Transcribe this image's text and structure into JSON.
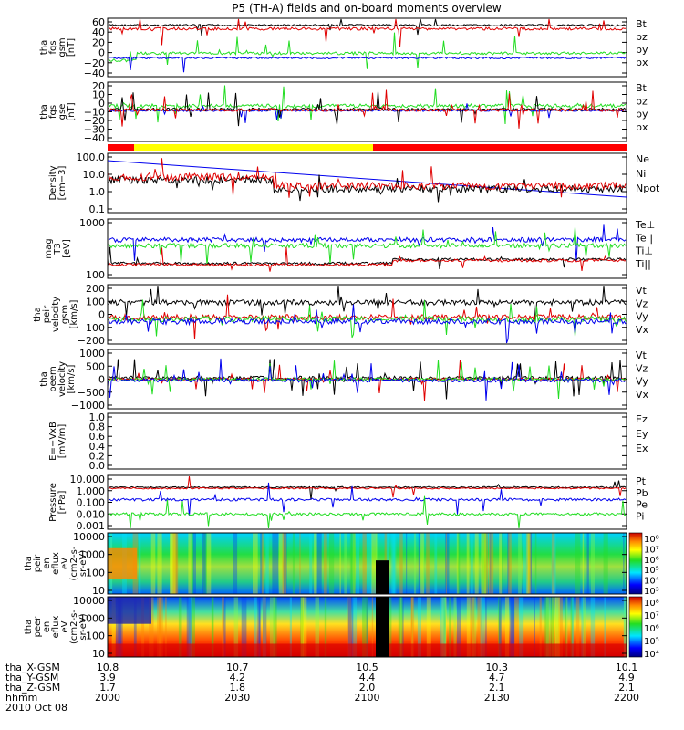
{
  "title": "P5 (TH-A) fields and on-board moments overview",
  "colors": {
    "black": "#000000",
    "red": "#e00000",
    "green": "#22dd22",
    "blue": "#0000ee",
    "yellow": "#ffff00"
  },
  "chart_data": [
    {
      "type": "line",
      "panel": "fgs_gsm",
      "ylabel": [
        "tha",
        "fgs",
        "gsm",
        "[nT]"
      ],
      "ylim": [
        -40,
        60
      ],
      "yticks": [
        "60",
        "40",
        "20",
        "0",
        "−20",
        "−40"
      ],
      "series": [
        {
          "name": "Bt",
          "color": "black"
        },
        {
          "name": "bz",
          "color": "red"
        },
        {
          "name": "by",
          "color": "green"
        },
        {
          "name": "bx",
          "color": "blue"
        }
      ]
    },
    {
      "type": "line",
      "panel": "fgs_gse",
      "ylabel": [
        "tha",
        "fgs",
        "gse",
        "[nT]"
      ],
      "ylim": [
        -45,
        25
      ],
      "yticks": [
        "20",
        "10",
        "0",
        "−10",
        "−20",
        "−30",
        "−40"
      ],
      "series": [
        {
          "name": "Bt",
          "color": "black"
        },
        {
          "name": "bz",
          "color": "red"
        },
        {
          "name": "by",
          "color": "green"
        },
        {
          "name": "bx",
          "color": "blue"
        }
      ]
    },
    {
      "type": "line",
      "panel": "density",
      "ylabel": [
        "Density",
        "[cm−3]"
      ],
      "scale": "log",
      "ylim": [
        0.1,
        100
      ],
      "yticks": [
        "100.0",
        "10.0",
        "1.0",
        "0.1"
      ],
      "series": [
        {
          "name": "Ne",
          "color": "red"
        },
        {
          "name": "Ni",
          "color": "black"
        },
        {
          "name": "Npot",
          "color": "blue"
        }
      ]
    },
    {
      "type": "line",
      "panel": "temperature",
      "ylabel": [
        "mag",
        "T3",
        "[eV]"
      ],
      "scale": "log",
      "ylim": [
        20,
        8000
      ],
      "yticks": [
        "1000",
        "100"
      ],
      "series": [
        {
          "name": "Te⊥",
          "color": "red"
        },
        {
          "name": "Te||",
          "color": "black"
        },
        {
          "name": "Ti⊥",
          "color": "blue"
        },
        {
          "name": "Ti||",
          "color": "green"
        }
      ]
    },
    {
      "type": "line",
      "panel": "peir_velocity",
      "ylabel": [
        "tha",
        "peir",
        "velocity",
        "gsm",
        "[km/s]"
      ],
      "ylim": [
        -200,
        200
      ],
      "yticks": [
        "200",
        "100",
        "0",
        "−100",
        "−200"
      ],
      "series": [
        {
          "name": "Vt",
          "color": "black"
        },
        {
          "name": "Vz",
          "color": "red"
        },
        {
          "name": "Vy",
          "color": "green"
        },
        {
          "name": "Vx",
          "color": "blue"
        }
      ]
    },
    {
      "type": "line",
      "panel": "peem_velocity",
      "ylabel": [
        "tha",
        "peem",
        "velocity",
        "[km/s]"
      ],
      "ylim": [
        -1000,
        1000
      ],
      "yticks": [
        "1000",
        "500",
        "0",
        "−500",
        "−1000"
      ],
      "series": [
        {
          "name": "Vt",
          "color": "black"
        },
        {
          "name": "Vz",
          "color": "red"
        },
        {
          "name": "Vy",
          "color": "green"
        },
        {
          "name": "Vx",
          "color": "blue"
        }
      ]
    },
    {
      "type": "line",
      "panel": "efield",
      "ylabel": [
        "E=−VxB",
        "[mV/m]"
      ],
      "ylim": [
        0,
        1
      ],
      "yticks": [
        "1.0",
        "0.8",
        "0.6",
        "0.4",
        "0.2",
        "0.0"
      ],
      "series": [
        {
          "name": "Ez",
          "color": "red"
        },
        {
          "name": "Ey",
          "color": "green"
        },
        {
          "name": "Ex",
          "color": "blue"
        }
      ]
    },
    {
      "type": "line",
      "panel": "pressure",
      "ylabel": [
        "Pressure",
        "[nPa]"
      ],
      "scale": "log",
      "ylim": [
        0.001,
        10
      ],
      "yticks": [
        "10.000",
        "1.000",
        "0.100",
        "0.010",
        "0.001"
      ],
      "series": [
        {
          "name": "Pt",
          "color": "black"
        },
        {
          "name": "Pb",
          "color": "red"
        },
        {
          "name": "Pe",
          "color": "green"
        },
        {
          "name": "Pi",
          "color": "blue"
        }
      ]
    },
    {
      "type": "heatmap",
      "panel": "peir_spectrogram",
      "ylabel": [
        "tha",
        "peir",
        "en",
        "eflux",
        "eV",
        "(cm2-s-",
        "sr-eV)"
      ],
      "scale": "log",
      "ylim": [
        10,
        20000
      ],
      "yticks": [
        "10000",
        "1000",
        "100",
        "10"
      ],
      "colorbar": [
        "10⁸",
        "10⁷",
        "10⁶",
        "10⁵",
        "10⁴",
        "10³"
      ]
    },
    {
      "type": "heatmap",
      "panel": "peer_spectrogram",
      "ylabel": [
        "tha",
        "peer",
        "en",
        "eflux",
        "eV",
        "(cm2-s-",
        "sr-eV)"
      ],
      "scale": "log",
      "ylim": [
        10,
        20000
      ],
      "yticks": [
        "10000",
        "1000",
        "100",
        "10"
      ],
      "colorbar": [
        "10⁸",
        "10⁷",
        "10⁶",
        "10⁵",
        "10⁴"
      ]
    }
  ],
  "x_axis": {
    "labels": [
      "tha_X-GSM",
      "tha_Y-GSM",
      "tha_Z-GSM",
      "hhmm",
      "2010 Oct 08"
    ],
    "ticks": [
      {
        "x": "10.8",
        "y": "3.9",
        "z": "1.7",
        "t": "2000"
      },
      {
        "x": "10.7",
        "y": "4.2",
        "z": "1.8",
        "t": "2030"
      },
      {
        "x": "10.5",
        "y": "4.4",
        "z": "2.0",
        "t": "2100"
      },
      {
        "x": "10.3",
        "y": "4.7",
        "z": "2.1",
        "t": "2130"
      },
      {
        "x": "10.1",
        "y": "4.9",
        "z": "2.1",
        "t": "2200"
      }
    ]
  }
}
